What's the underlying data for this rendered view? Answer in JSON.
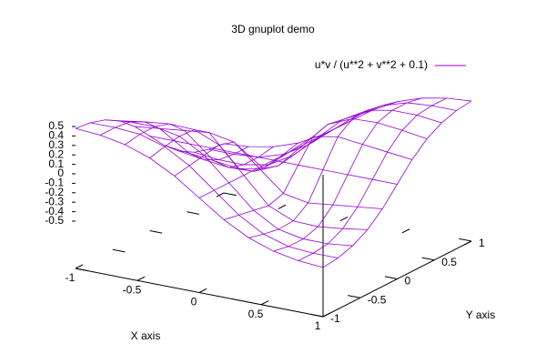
{
  "chart_data": {
    "type": "surface",
    "title": "3D gnuplot demo",
    "xlabel": "X axis",
    "ylabel": "Y axis",
    "x": [
      -1,
      -0.8,
      -0.6,
      -0.4,
      -0.2,
      0,
      0.2,
      0.4,
      0.6,
      0.8,
      1
    ],
    "y": [
      -1,
      -0.8,
      -0.6,
      -0.4,
      -0.2,
      0,
      0.2,
      0.4,
      0.6,
      0.8,
      1
    ],
    "series": [
      {
        "name": "u*v / (u**2 + v**2 + 0.1)",
        "color": "#9400d3",
        "z": [
          [
            0.48,
            0.46,
            0.41,
            0.32,
            0.18,
            0,
            -0.18,
            -0.32,
            -0.41,
            -0.46,
            -0.48
          ],
          [
            0.46,
            0.46,
            0.44,
            0.36,
            0.21,
            0,
            -0.21,
            -0.36,
            -0.44,
            -0.46,
            -0.46
          ],
          [
            0.41,
            0.44,
            0.44,
            0.39,
            0.24,
            0,
            -0.24,
            -0.39,
            -0.44,
            -0.44,
            -0.41
          ],
          [
            0.32,
            0.36,
            0.39,
            0.38,
            0.27,
            0,
            -0.27,
            -0.38,
            -0.39,
            -0.36,
            -0.32
          ],
          [
            0.18,
            0.21,
            0.24,
            0.27,
            0.22,
            0,
            -0.22,
            -0.27,
            -0.24,
            -0.21,
            -0.18
          ],
          [
            0,
            0,
            0,
            0,
            0,
            0,
            0,
            0,
            0,
            0,
            0
          ],
          [
            -0.18,
            -0.21,
            -0.24,
            -0.27,
            -0.22,
            0,
            0.22,
            0.27,
            0.24,
            0.21,
            0.18
          ],
          [
            -0.32,
            -0.36,
            -0.39,
            -0.38,
            -0.27,
            0,
            0.27,
            0.38,
            0.39,
            0.36,
            0.32
          ],
          [
            -0.41,
            -0.44,
            -0.44,
            -0.39,
            -0.24,
            0,
            0.24,
            0.39,
            0.44,
            0.44,
            0.41
          ],
          [
            -0.46,
            -0.46,
            -0.44,
            -0.36,
            -0.21,
            0,
            0.21,
            0.36,
            0.44,
            0.46,
            0.46
          ],
          [
            -0.48,
            -0.46,
            -0.41,
            -0.32,
            -0.18,
            0,
            0.18,
            0.32,
            0.41,
            0.46,
            0.48
          ]
        ]
      }
    ],
    "xlim": [
      -1,
      1
    ],
    "ylim": [
      -1,
      1
    ],
    "zlim": [
      -0.5,
      0.5
    ],
    "xticks": [
      -1,
      -0.5,
      0,
      0.5,
      1
    ],
    "yticks": [
      -1,
      -0.5,
      0,
      0.5,
      1
    ],
    "zticks": [
      0.5,
      0.4,
      0.3,
      0.2,
      0.1,
      0,
      -0.1,
      -0.2,
      -0.3,
      -0.4,
      -0.5
    ],
    "legend": "top right"
  }
}
